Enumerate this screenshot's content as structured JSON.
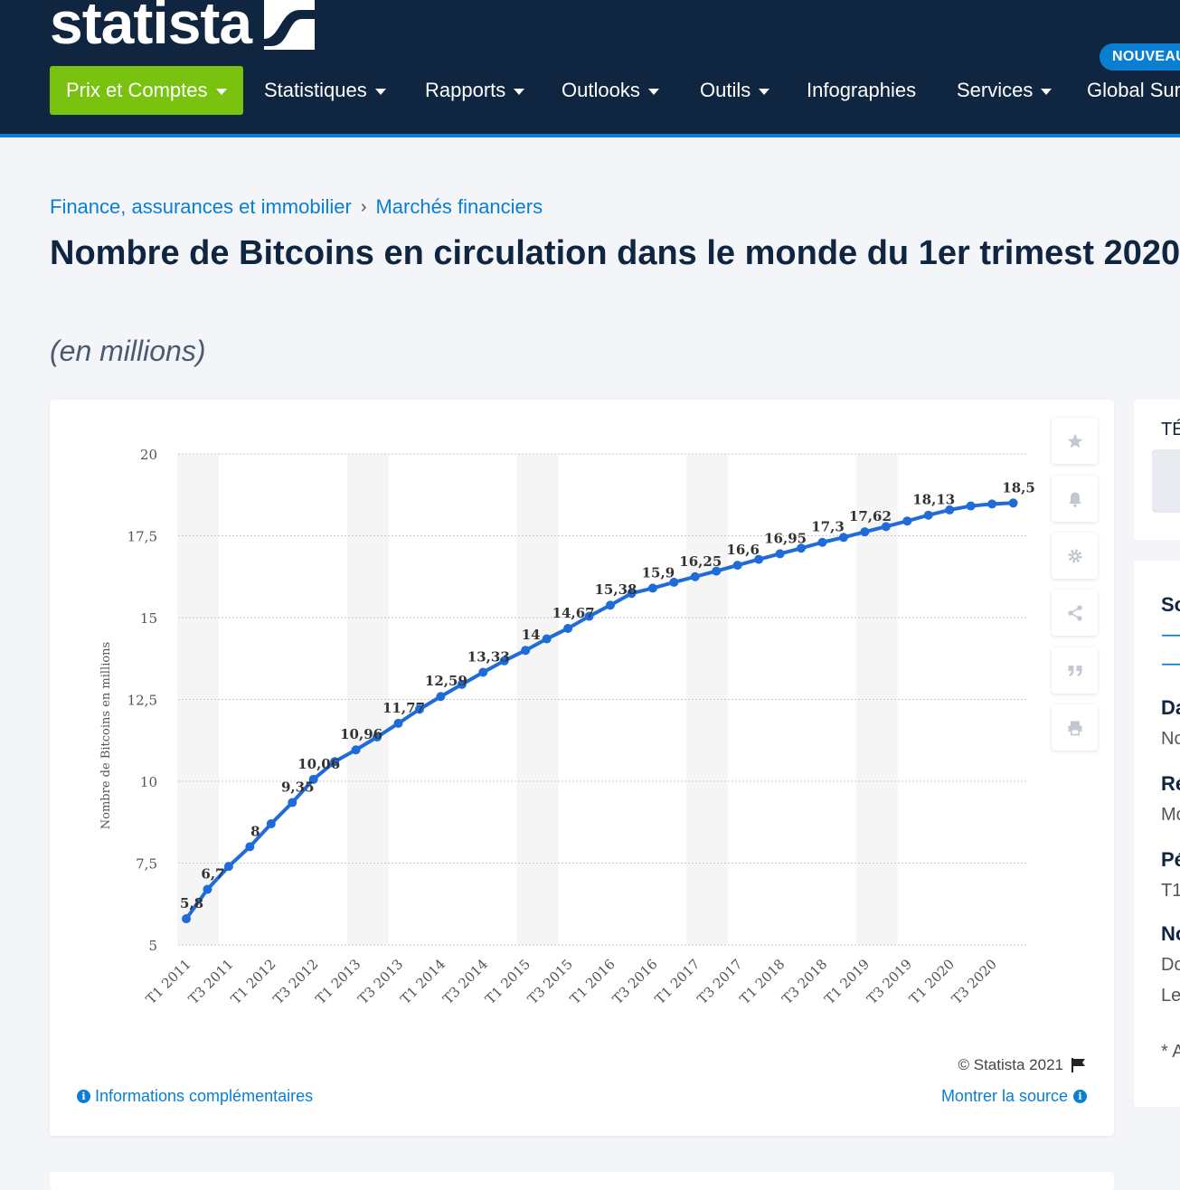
{
  "brand": {
    "name": "statista",
    "badge": "NOUVEAU"
  },
  "nav": {
    "items": [
      {
        "label": "Prix et Comptes",
        "dropdown": true
      },
      {
        "label": "Statistiques",
        "dropdown": true
      },
      {
        "label": "Rapports",
        "dropdown": true
      },
      {
        "label": "Outlooks",
        "dropdown": true
      },
      {
        "label": "Outils",
        "dropdown": true
      },
      {
        "label": "Infographies",
        "dropdown": false
      },
      {
        "label": "Services",
        "dropdown": true
      },
      {
        "label": "Global Surv",
        "dropdown": false
      }
    ]
  },
  "breadcrumb": {
    "item1": "Finance, assurances et immobilier",
    "separator": "›",
    "item2": "Marchés financiers"
  },
  "page": {
    "title": "Nombre de Bitcoins en circulation dans le monde du 1er trimest 2020",
    "subtitle": "(en millions)"
  },
  "toolbar": {
    "icons": [
      "star-icon",
      "bell-icon",
      "gear-icon",
      "share-icon",
      "quote-icon",
      "print-icon"
    ]
  },
  "card_footer": {
    "copyright": "© Statista 2021",
    "more_info": "Informations complémentaires",
    "show_source": "Montrer la source"
  },
  "side_panel": {
    "top_label": "TÉ",
    "section_labels": [
      "So",
      "Da",
      "No",
      "Ré",
      "Mo",
      "Pé",
      "T1",
      "No",
      "Do",
      "Le",
      "* A"
    ]
  },
  "chart_data": {
    "type": "line",
    "title": "",
    "xlabel": "",
    "ylabel": "Nombre de Bitcoins en millions",
    "ylim": [
      5,
      20
    ],
    "yticks": [
      "5",
      "7,5",
      "10",
      "12,5",
      "15",
      "17,5",
      "20"
    ],
    "ytick_values": [
      5,
      7.5,
      10,
      12.5,
      15,
      17.5,
      20
    ],
    "grid": true,
    "legend": "none",
    "colors": {
      "line": "#1f6bd9",
      "grid": "#c9c9c9",
      "band": "#f5f5f5"
    },
    "x_tick_labels": [
      "T1 2011",
      "T3 2011",
      "T1 2012",
      "T3 2012",
      "T1 2013",
      "T3 2013",
      "T1 2014",
      "T3 2014",
      "T1 2015",
      "T3 2015",
      "T1 2016",
      "T3 2016",
      "T1 2017",
      "T3 2017",
      "T1 2018",
      "T3 2018",
      "T1 2019",
      "T3 2019",
      "T1 2020",
      "T3 2020"
    ],
    "series": [
      {
        "values": [
          5.8,
          6.7,
          7.4,
          8,
          8.7,
          9.35,
          10.06,
          10.6,
          10.96,
          11.35,
          11.77,
          12.2,
          12.59,
          12.96,
          13.33,
          13.68,
          14,
          14.35,
          14.67,
          15.04,
          15.38,
          15.74,
          15.9,
          16.08,
          16.25,
          16.42,
          16.6,
          16.78,
          16.95,
          17.12,
          17.3,
          17.45,
          17.62,
          17.78,
          17.95,
          18.13,
          18.29,
          18.41,
          18.47,
          18.5
        ]
      }
    ],
    "data_labels": [
      {
        "index": 0,
        "text": "5,8"
      },
      {
        "index": 1,
        "text": "6,7"
      },
      {
        "index": 3,
        "text": "8"
      },
      {
        "index": 5,
        "text": "9,35"
      },
      {
        "index": 6,
        "text": "10,06"
      },
      {
        "index": 8,
        "text": "10,96"
      },
      {
        "index": 10,
        "text": "11,77"
      },
      {
        "index": 12,
        "text": "12,59"
      },
      {
        "index": 14,
        "text": "13,33"
      },
      {
        "index": 16,
        "text": "14"
      },
      {
        "index": 18,
        "text": "14,67"
      },
      {
        "index": 20,
        "text": "15,38"
      },
      {
        "index": 22,
        "text": "15,9"
      },
      {
        "index": 24,
        "text": "16,25"
      },
      {
        "index": 26,
        "text": "16,6"
      },
      {
        "index": 28,
        "text": "16,95"
      },
      {
        "index": 30,
        "text": "17,3"
      },
      {
        "index": 32,
        "text": "17,62"
      },
      {
        "index": 35,
        "text": "18,13"
      },
      {
        "index": 39,
        "text": "18,5"
      }
    ]
  }
}
